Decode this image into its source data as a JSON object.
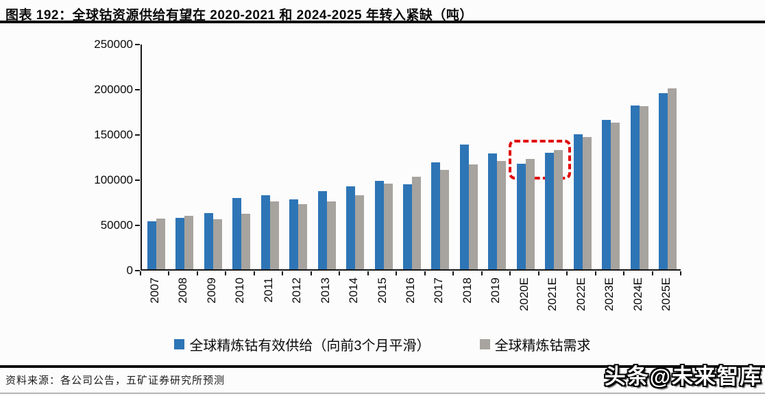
{
  "title": "图表 192：全球钴资源供给有望在 2020-2021 和 2024-2025 年转入紧缺（吨）",
  "source": "资料来源：各公司公告，五矿证券研究所预测",
  "watermark": "头条@未来智库",
  "colors": {
    "supply": "#2e75b6",
    "demand": "#a7a39e",
    "highlight": "#e00000",
    "axis": "#161616"
  },
  "chart_data": {
    "type": "bar",
    "title": "全球钴资源供给有望在 2020-2021 和 2024-2025 年转入紧缺（吨）",
    "xlabel": "",
    "ylabel": "",
    "ylim": [
      0,
      250000
    ],
    "y_ticks": [
      0,
      50000,
      100000,
      150000,
      200000,
      250000
    ],
    "grid": false,
    "legend_position": "bottom",
    "categories": [
      "2007",
      "2008",
      "2009",
      "2010",
      "2011",
      "2012",
      "2013",
      "2014",
      "2015",
      "2016",
      "2017",
      "2018",
      "2019",
      "2020E",
      "2021E",
      "2022E",
      "2023E",
      "2024E",
      "2025E"
    ],
    "series": [
      {
        "name": "全球精炼钴有效供给（向前3个月平滑）",
        "color": "#2e75b6",
        "values": [
          53000,
          57000,
          62000,
          79000,
          82000,
          77000,
          86000,
          92000,
          98000,
          94000,
          118000,
          138000,
          128000,
          117000,
          129000,
          149000,
          165000,
          181000,
          195000
        ]
      },
      {
        "name": "全球精炼钴需求",
        "color": "#a7a39e",
        "values": [
          56000,
          59000,
          55000,
          61000,
          75000,
          72000,
          75000,
          82000,
          95000,
          102000,
          110000,
          116000,
          120000,
          122000,
          132000,
          146000,
          162000,
          180000,
          200000
        ]
      }
    ],
    "annotation": {
      "type": "dashed-box",
      "color": "#e00000",
      "covers": [
        "2020E",
        "2021E"
      ]
    }
  }
}
